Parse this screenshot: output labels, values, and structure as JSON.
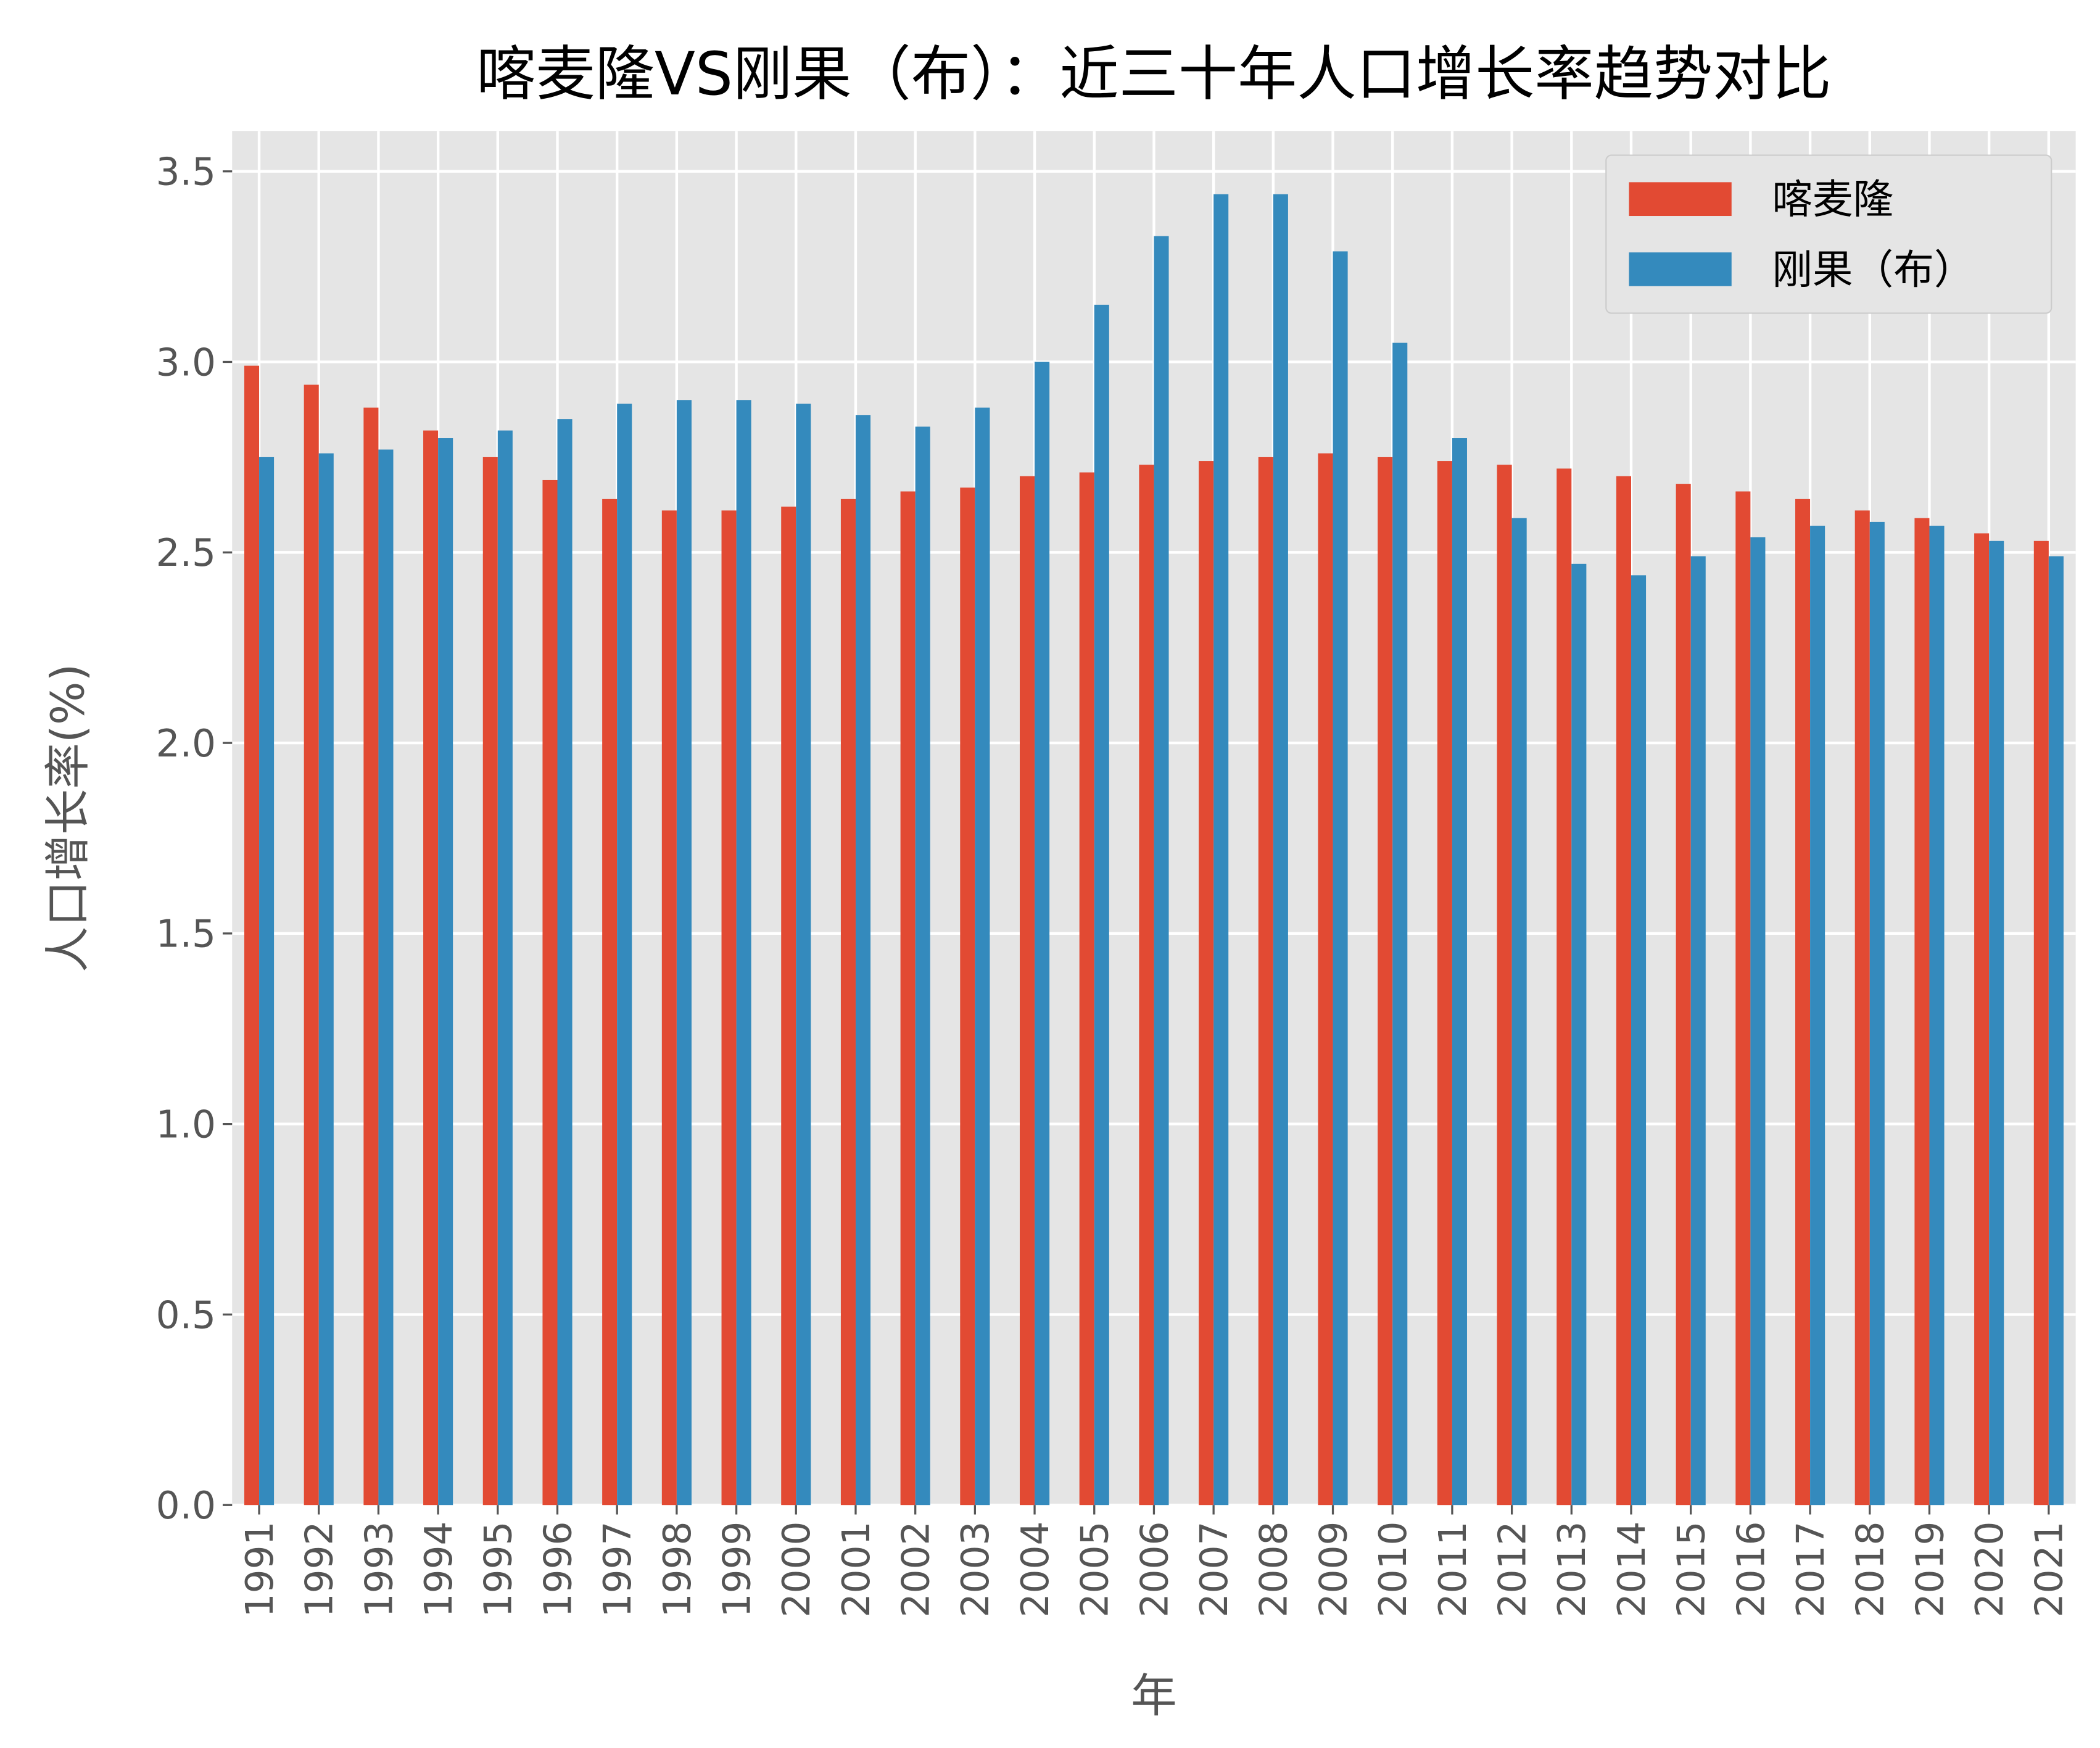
{
  "chart_data": {
    "type": "bar",
    "title": "喀麦隆VS刚果（布）：近三十年人口增长率趋势对比",
    "xlabel": "年",
    "ylabel": "人口增长率(%)",
    "ylim": [
      0,
      3.6
    ],
    "yticks": [
      "0.0",
      "0.5",
      "1.0",
      "1.5",
      "2.0",
      "2.5",
      "3.0",
      "3.5"
    ],
    "grid": true,
    "legend_position": "top-right",
    "categories": [
      "1991",
      "1992",
      "1993",
      "1994",
      "1995",
      "1996",
      "1997",
      "1998",
      "1999",
      "2000",
      "2001",
      "2002",
      "2003",
      "2004",
      "2005",
      "2006",
      "2007",
      "2008",
      "2009",
      "2010",
      "2011",
      "2012",
      "2013",
      "2014",
      "2015",
      "2016",
      "2017",
      "2018",
      "2019",
      "2020",
      "2021"
    ],
    "series": [
      {
        "name": "喀麦隆",
        "color": "#E24A33",
        "values": [
          2.99,
          2.94,
          2.88,
          2.82,
          2.75,
          2.69,
          2.64,
          2.61,
          2.61,
          2.62,
          2.64,
          2.66,
          2.67,
          2.7,
          2.71,
          2.73,
          2.74,
          2.75,
          2.76,
          2.75,
          2.74,
          2.73,
          2.72,
          2.7,
          2.68,
          2.66,
          2.64,
          2.61,
          2.59,
          2.55,
          2.53
        ]
      },
      {
        "name": "刚果（布）",
        "color": "#348ABD",
        "values": [
          2.75,
          2.76,
          2.77,
          2.8,
          2.82,
          2.85,
          2.89,
          2.9,
          2.9,
          2.89,
          2.86,
          2.83,
          2.88,
          3.0,
          3.15,
          3.33,
          3.44,
          3.44,
          3.29,
          3.05,
          2.8,
          2.59,
          2.47,
          2.44,
          2.49,
          2.54,
          2.57,
          2.58,
          2.57,
          2.53,
          2.49
        ]
      }
    ]
  }
}
